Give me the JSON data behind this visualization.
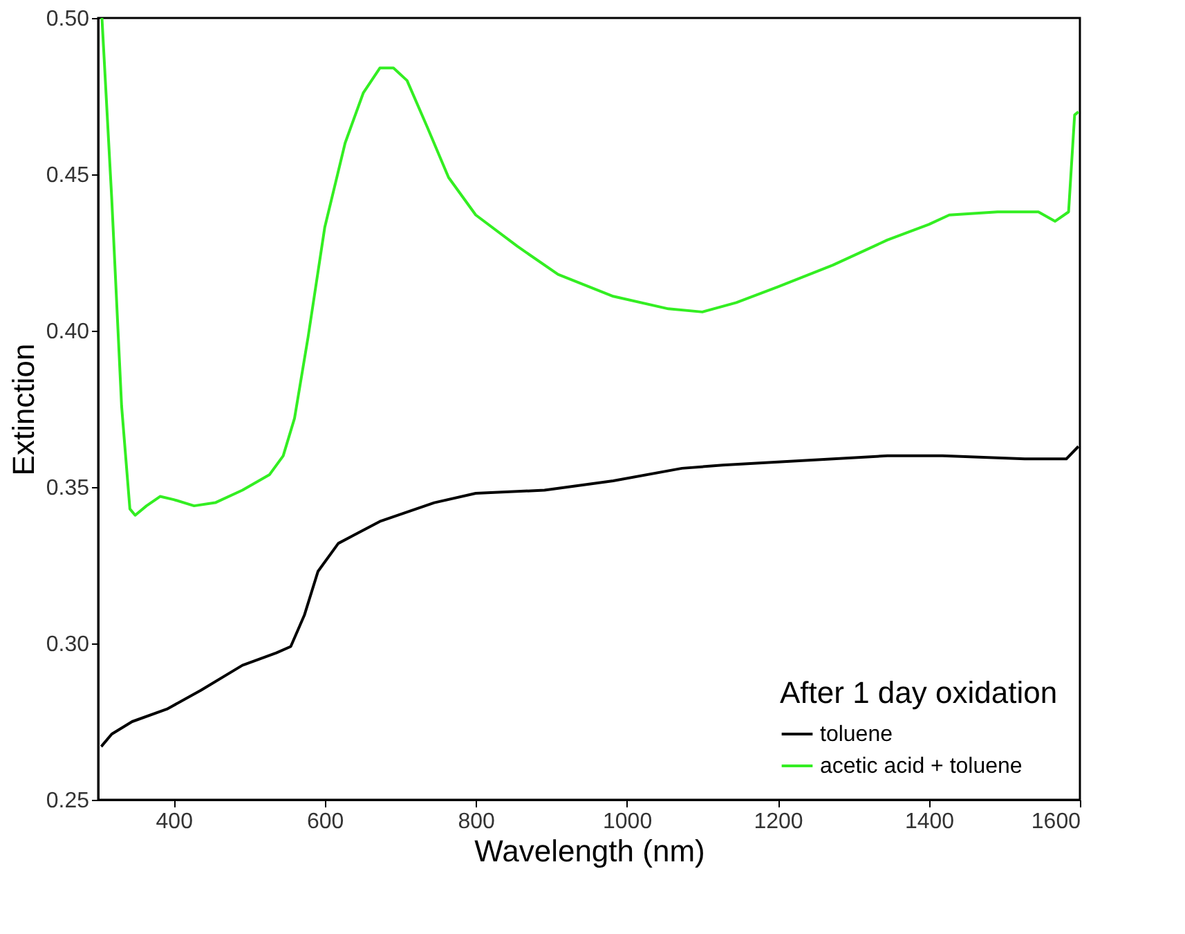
{
  "chart_data": {
    "type": "line",
    "xlabel": "Wavelength (nm)",
    "ylabel": "Extinction",
    "legend_title": "After 1 day oxidation",
    "legend": "bottom right",
    "grid": false,
    "line_style": "solid",
    "marker": "none",
    "xlim": [
      300,
      1600
    ],
    "xticks": [
      400,
      600,
      800,
      1000,
      1200,
      1400,
      1600
    ],
    "ylim": [
      0.25,
      0.5
    ],
    "yticks": [
      0.25,
      {
        "value": 0.3,
        "label": "0.30"
      },
      0.35,
      {
        "value": 0.4,
        "label": "0.40"
      },
      0.45,
      {
        "value": 0.5,
        "label": "0.50"
      }
    ],
    "series": [
      {
        "name": "toluene",
        "color": "#000000",
        "x": [
          304,
          318,
          345,
          391,
          436,
          491,
          536,
          555,
          573,
          591,
          618,
          673,
          745,
          800,
          891,
          982,
          1073,
          1127,
          1200,
          1345,
          1418,
          1527,
          1582,
          1598
        ],
        "values": [
          0.267,
          0.271,
          0.275,
          0.279,
          0.285,
          0.293,
          0.297,
          0.299,
          0.309,
          0.323,
          0.332,
          0.339,
          0.345,
          0.348,
          0.349,
          0.352,
          0.356,
          0.357,
          0.358,
          0.36,
          0.36,
          0.359,
          0.359,
          0.363
        ]
      },
      {
        "name": "acetic acid + toluene",
        "color": "#33ee22",
        "x": [
          305,
          318,
          331,
          342,
          349,
          364,
          382,
          400,
          427,
          455,
          491,
          527,
          545,
          560,
          578,
          600,
          627,
          651,
          673,
          691,
          709,
          736,
          764,
          800,
          855,
          909,
          982,
          1055,
          1100,
          1145,
          1200,
          1273,
          1345,
          1400,
          1427,
          1491,
          1545,
          1567,
          1585,
          1593,
          1598
        ],
        "values": [
          0.5,
          0.442,
          0.376,
          0.343,
          0.341,
          0.344,
          0.347,
          0.346,
          0.344,
          0.345,
          0.349,
          0.354,
          0.36,
          0.372,
          0.398,
          0.433,
          0.46,
          0.476,
          0.484,
          0.484,
          0.48,
          0.465,
          0.449,
          0.437,
          0.427,
          0.418,
          0.411,
          0.407,
          0.406,
          0.409,
          0.414,
          0.421,
          0.429,
          0.434,
          0.437,
          0.438,
          0.438,
          0.435,
          0.438,
          0.469,
          0.47
        ]
      }
    ]
  }
}
